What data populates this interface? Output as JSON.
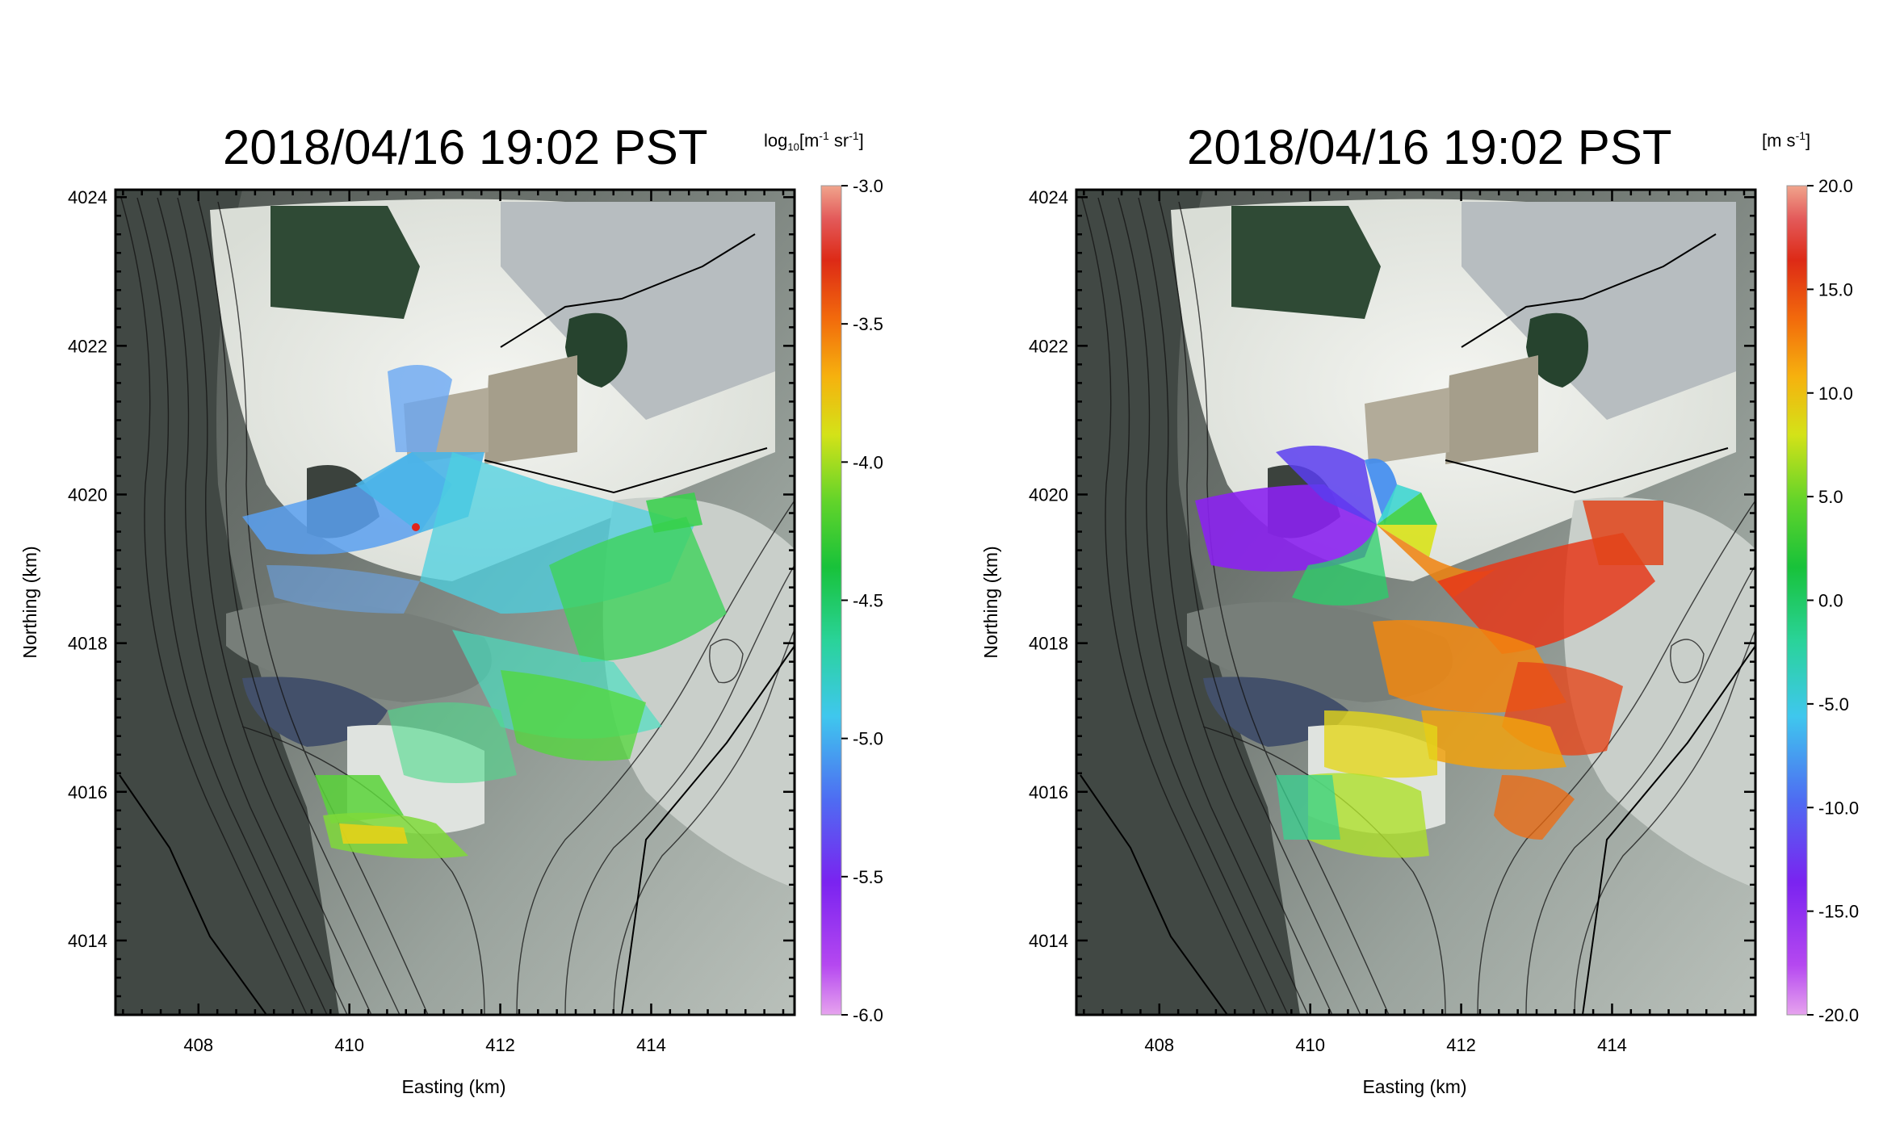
{
  "panels": [
    {
      "id": "left",
      "title": "2018/04/16 19:02 PST",
      "colorbar": {
        "unit_prefix": "log",
        "unit_sub": "10",
        "unit_body": "[m",
        "unit_sup1": "-1",
        "unit_mid": " sr",
        "unit_sup2": "-1",
        "unit_end": "]",
        "ticks": [
          "-3.0",
          "-3.5",
          "-4.0",
          "-4.5",
          "-5.0",
          "-5.5",
          "-6.0"
        ],
        "range": [
          -6.0,
          -3.0
        ],
        "colormap": "rainbow"
      },
      "xlabel": "Easting (km)",
      "ylabel": "Northing (km)",
      "xticks": [
        "408",
        "410",
        "412",
        "414"
      ],
      "yticks": [
        "4024",
        "4022",
        "4020",
        "4018",
        "4016",
        "4014"
      ]
    },
    {
      "id": "right",
      "title": "2018/04/16 19:02 PST",
      "colorbar": {
        "unit_body": "[m s",
        "unit_sup1": "-1",
        "unit_end": "]",
        "ticks": [
          "20.0",
          "15.0",
          "10.0",
          "5.0",
          "0.0",
          "-5.0",
          "-10.0",
          "-15.0",
          "-20.0"
        ],
        "range": [
          -20.0,
          20.0
        ],
        "colormap": "rainbow"
      },
      "xlabel": "Easting (km)",
      "ylabel": "Northing (km)",
      "xticks": [
        "408",
        "410",
        "412",
        "414"
      ],
      "yticks": [
        "4024",
        "4022",
        "4020",
        "4018",
        "4016",
        "4014"
      ]
    }
  ],
  "map": {
    "x_range_km": [
      406.9,
      415.9
    ],
    "y_range_km": [
      4013.0,
      4024.1
    ],
    "lidar_site_km": [
      411.0,
      4019.6
    ],
    "colors": {
      "terrain_dark": "#5b625d",
      "terrain_light": "#c4cac4",
      "farmland_green": "#2f4a35",
      "playa_white": "#eef0ec",
      "contour": "#111111",
      "site_marker": "#e0241b"
    }
  }
}
